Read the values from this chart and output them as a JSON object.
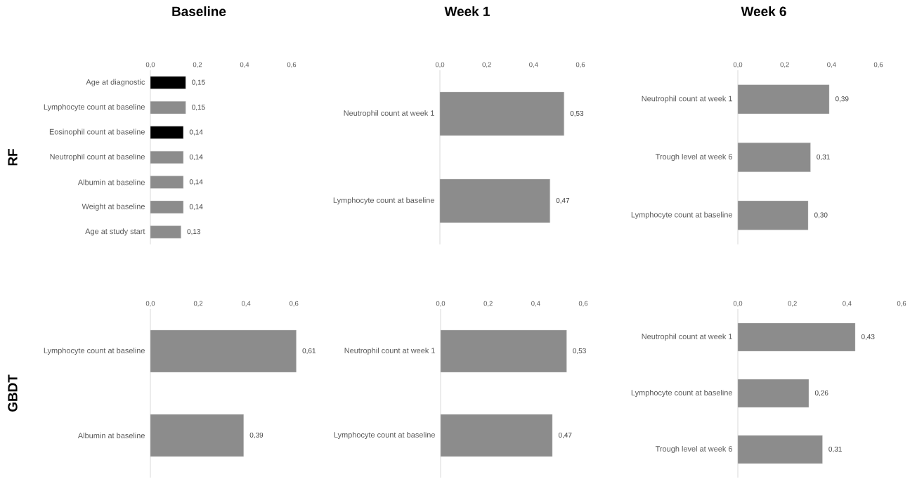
{
  "chart_data": [
    {
      "type": "bar",
      "orientation": "horizontal",
      "title": "Baseline",
      "ylabel": "RF",
      "categories": [
        "Age at diagnostic",
        "Lymphocyte count at baseline",
        "Eosinophil count at baseline",
        "Neutrophil count at baseline",
        "Albumin at baseline",
        "Weight at baseline",
        "Age at study start"
      ],
      "values": [
        0.15,
        0.15,
        0.14,
        0.14,
        0.14,
        0.14,
        0.13
      ],
      "colors": [
        "#000000",
        "#8c8c8c",
        "#000000",
        "#8c8c8c",
        "#8c8c8c",
        "#8c8c8c",
        "#8c8c8c"
      ],
      "value_labels": [
        "0,15",
        "0,15",
        "0,14",
        "0,14",
        "0,14",
        "0,14",
        "0,13"
      ],
      "xlim": [
        0,
        0.6
      ],
      "xticks": [
        {
          "value": 0,
          "label": "0,0"
        },
        {
          "value": 0.2,
          "label": "0,2"
        },
        {
          "value": 0.4,
          "label": "0,4"
        },
        {
          "value": 0.6,
          "label": "0,6"
        }
      ]
    },
    {
      "type": "bar",
      "orientation": "horizontal",
      "title": "Week 1",
      "categories": [
        "Neutrophil count at week 1",
        "Lymphocyte count at baseline"
      ],
      "values": [
        0.53,
        0.47
      ],
      "colors": [
        "#8c8c8c",
        "#8c8c8c"
      ],
      "value_labels": [
        "0,53",
        "0,47"
      ],
      "xlim": [
        0,
        0.6
      ],
      "xticks": [
        {
          "value": 0,
          "label": "0,0"
        },
        {
          "value": 0.2,
          "label": "0,2"
        },
        {
          "value": 0.4,
          "label": "0,4"
        },
        {
          "value": 0.6,
          "label": "0,6"
        }
      ]
    },
    {
      "type": "bar",
      "orientation": "horizontal",
      "title": "Week 6",
      "categories": [
        "Neutrophil count at week 1",
        "Trough level at week 6",
        "Lymphocyte count at baseline"
      ],
      "values": [
        0.39,
        0.31,
        0.3
      ],
      "colors": [
        "#8c8c8c",
        "#8c8c8c",
        "#8c8c8c"
      ],
      "value_labels": [
        "0,39",
        "0,31",
        "0,30"
      ],
      "xlim": [
        0,
        0.6
      ],
      "xticks": [
        {
          "value": 0,
          "label": "0,0"
        },
        {
          "value": 0.2,
          "label": "0,2"
        },
        {
          "value": 0.4,
          "label": "0,4"
        },
        {
          "value": 0.6,
          "label": "0,6"
        }
      ]
    },
    {
      "type": "bar",
      "orientation": "horizontal",
      "ylabel": "GBDT",
      "categories": [
        "Lymphocyte count at baseline",
        "Albumin at baseline"
      ],
      "values": [
        0.61,
        0.39
      ],
      "colors": [
        "#8c8c8c",
        "#8c8c8c"
      ],
      "value_labels": [
        "0,61",
        "0,39"
      ],
      "xlim": [
        0,
        0.62
      ],
      "xticks": [
        {
          "value": 0,
          "label": "0,0"
        },
        {
          "value": 0.2,
          "label": "0,2"
        },
        {
          "value": 0.4,
          "label": "0,4"
        },
        {
          "value": 0.6,
          "label": "0,6"
        }
      ]
    },
    {
      "type": "bar",
      "orientation": "horizontal",
      "categories": [
        "Neutrophil count at week 1",
        "Lymphocyte count at baseline"
      ],
      "values": [
        0.53,
        0.47
      ],
      "colors": [
        "#8c8c8c",
        "#8c8c8c"
      ],
      "value_labels": [
        "0,53",
        "0,47"
      ],
      "xlim": [
        0,
        0.6
      ],
      "xticks": [
        {
          "value": 0,
          "label": "0,0"
        },
        {
          "value": 0.2,
          "label": "0,2"
        },
        {
          "value": 0.4,
          "label": "0,4"
        },
        {
          "value": 0.6,
          "label": "0,6"
        }
      ]
    },
    {
      "type": "bar",
      "orientation": "horizontal",
      "categories": [
        "Neutrophil count at week 1",
        "Lymphocyte count at baseline",
        "Trough level at week 6"
      ],
      "values": [
        0.43,
        0.26,
        0.31
      ],
      "colors": [
        "#8c8c8c",
        "#8c8c8c",
        "#8c8c8c"
      ],
      "value_labels": [
        "0,43",
        "0,26",
        "0,31"
      ],
      "xlim": [
        0,
        0.6
      ],
      "xticks": [
        {
          "value": 0,
          "label": "0,0"
        },
        {
          "value": 0.2,
          "label": "0,2"
        },
        {
          "value": 0.4,
          "label": "0,4"
        },
        {
          "value": 0.6,
          "label": "0,6"
        }
      ]
    }
  ]
}
